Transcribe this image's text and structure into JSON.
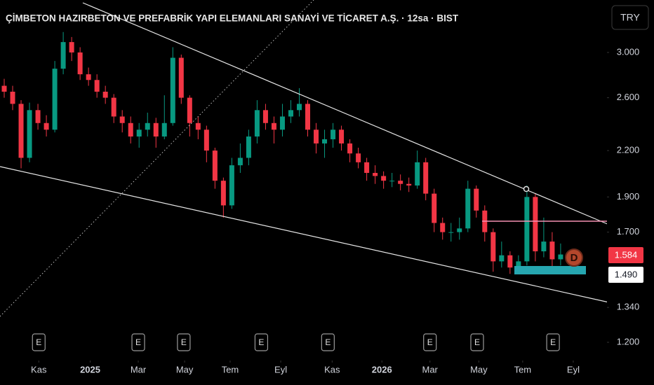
{
  "currency": "TRY",
  "marker_letter": "D",
  "chart_data": {
    "type": "candlestick",
    "title": "ÇİMBETON HAZIRBETON VE PREFABRİK YAPI ELEMANLARI SANAYİ VE TİCARET A.Ş. · 12sa · BIST",
    "log_scale": true,
    "up_color": "#089981",
    "down_color": "#f23645",
    "xlim": [
      0,
      72
    ],
    "ylim": [
      1.133,
      3.541
    ],
    "xticks": [
      {
        "value": 4.6,
        "label": "Kas"
      },
      {
        "value": 10.7,
        "label": "2025"
      },
      {
        "value": 16.4,
        "label": "Mar"
      },
      {
        "value": 21.9,
        "label": "May"
      },
      {
        "value": 27.3,
        "label": "Tem"
      },
      {
        "value": 33.3,
        "label": "Eyl"
      },
      {
        "value": 39.4,
        "label": "Kas"
      },
      {
        "value": 45.3,
        "label": "2026"
      },
      {
        "value": 51,
        "label": "Mar"
      },
      {
        "value": 56.8,
        "label": "May"
      },
      {
        "value": 62,
        "label": "Tem"
      },
      {
        "value": 68,
        "label": "Eyl"
      }
    ],
    "yticks": [
      {
        "value": 3,
        "label": "3.000"
      },
      {
        "value": 2.6,
        "label": "2.600"
      },
      {
        "value": 2.2,
        "label": "2.200"
      },
      {
        "value": 1.9,
        "label": "1.900"
      },
      {
        "value": 1.7,
        "label": "1.700"
      },
      {
        "value": 1.34,
        "label": "1.340"
      },
      {
        "value": 1.2,
        "label": "1.200"
      }
    ],
    "price_labels": [
      "1.584",
      "1.490"
    ],
    "events": [
      {
        "x": 4.6,
        "label": "E"
      },
      {
        "x": 16.4,
        "label": "E"
      },
      {
        "x": 21.8,
        "label": "E"
      },
      {
        "x": 31,
        "label": "E"
      },
      {
        "x": 38.9,
        "label": "E"
      },
      {
        "x": 51,
        "label": "E"
      },
      {
        "x": 56.6,
        "label": "E"
      },
      {
        "x": 65.6,
        "label": "E"
      }
    ],
    "x": [
      0.5,
      1.5,
      2.5,
      3.5,
      4.5,
      5.5,
      6.5,
      7.5,
      8.5,
      9.5,
      10.5,
      11.5,
      12.5,
      13.5,
      14.5,
      15.5,
      16.5,
      17.5,
      18.5,
      19.5,
      20.5,
      21.5,
      22.5,
      23.5,
      24.5,
      25.5,
      26.5,
      27.5,
      28.5,
      29.5,
      30.5,
      31.5,
      32.5,
      33.5,
      34.5,
      35.5,
      36.5,
      37.5,
      38.5,
      39.5,
      40.5,
      41.5,
      42.5,
      43.5,
      44.5,
      45.5,
      46.5,
      47.5,
      48.5,
      49.5,
      50.5,
      51.5,
      52.5,
      53.5,
      54.5,
      55.5,
      56.5,
      57.5,
      58.5,
      59.5,
      60.5,
      61.5,
      62.5,
      63.5,
      64.5,
      65.5,
      66.5
    ],
    "open": [
      2.7,
      2.65,
      2.55,
      2.15,
      2.5,
      2.4,
      2.35,
      2.85,
      3.1,
      3.0,
      2.8,
      2.75,
      2.65,
      2.6,
      2.45,
      2.4,
      2.3,
      2.35,
      2.4,
      2.3,
      2.4,
      2.95,
      2.6,
      2.4,
      2.35,
      2.2,
      2.0,
      1.85,
      2.1,
      2.15,
      2.3,
      2.5,
      2.4,
      2.35,
      2.45,
      2.5,
      2.55,
      2.35,
      2.25,
      2.28,
      2.35,
      2.25,
      2.18,
      2.12,
      2.05,
      2.03,
      2.0,
      2.0,
      1.98,
      1.97,
      2.12,
      1.92,
      1.75,
      1.7,
      1.7,
      1.72,
      1.95,
      1.82,
      1.7,
      1.55,
      1.58,
      1.52,
      1.55,
      1.9,
      1.6,
      1.65,
      1.56
    ],
    "high": [
      2.76,
      2.7,
      2.58,
      2.56,
      2.55,
      2.46,
      2.92,
      3.2,
      3.15,
      3.05,
      2.86,
      2.8,
      2.7,
      2.63,
      2.5,
      2.45,
      2.4,
      2.48,
      2.44,
      2.62,
      3.05,
      2.98,
      2.62,
      2.45,
      2.38,
      2.22,
      2.02,
      2.15,
      2.25,
      2.35,
      2.58,
      2.55,
      2.45,
      2.55,
      2.58,
      2.68,
      2.58,
      2.4,
      2.35,
      2.4,
      2.38,
      2.28,
      2.22,
      2.15,
      2.1,
      2.06,
      2.05,
      2.04,
      2.02,
      2.2,
      2.15,
      1.95,
      1.78,
      1.75,
      1.78,
      2.0,
      1.97,
      1.85,
      1.72,
      1.65,
      1.6,
      1.58,
      1.97,
      1.92,
      1.78,
      1.7,
      1.64
    ],
    "low": [
      2.6,
      2.5,
      2.08,
      2.12,
      2.35,
      2.3,
      2.33,
      2.8,
      2.92,
      2.75,
      2.7,
      2.6,
      2.55,
      2.4,
      2.33,
      2.25,
      2.22,
      2.3,
      2.22,
      2.28,
      2.38,
      2.55,
      2.3,
      2.28,
      2.12,
      1.95,
      1.78,
      1.83,
      2.05,
      2.1,
      2.25,
      2.35,
      2.25,
      2.3,
      2.4,
      2.45,
      2.3,
      2.18,
      2.15,
      2.22,
      2.2,
      2.12,
      2.08,
      2.0,
      1.98,
      1.95,
      1.96,
      1.94,
      1.93,
      1.95,
      1.88,
      1.7,
      1.66,
      1.65,
      1.66,
      1.7,
      1.78,
      1.65,
      1.5,
      1.52,
      1.49,
      1.5,
      1.53,
      1.55,
      1.57,
      1.52,
      1.53
    ],
    "close": [
      2.65,
      2.55,
      2.15,
      2.5,
      2.4,
      2.35,
      2.85,
      3.1,
      3.0,
      2.8,
      2.75,
      2.65,
      2.6,
      2.45,
      2.4,
      2.3,
      2.35,
      2.4,
      2.3,
      2.4,
      2.95,
      2.6,
      2.4,
      2.35,
      2.2,
      2.0,
      1.85,
      2.1,
      2.15,
      2.3,
      2.5,
      2.4,
      2.35,
      2.45,
      2.5,
      2.55,
      2.35,
      2.25,
      2.28,
      2.35,
      2.25,
      2.18,
      2.12,
      2.05,
      2.03,
      2.0,
      2.0,
      1.98,
      1.97,
      2.12,
      1.92,
      1.75,
      1.7,
      1.7,
      1.72,
      1.95,
      1.82,
      1.7,
      1.55,
      1.58,
      1.52,
      1.55,
      1.9,
      1.6,
      1.65,
      1.56,
      1.584
    ]
  }
}
